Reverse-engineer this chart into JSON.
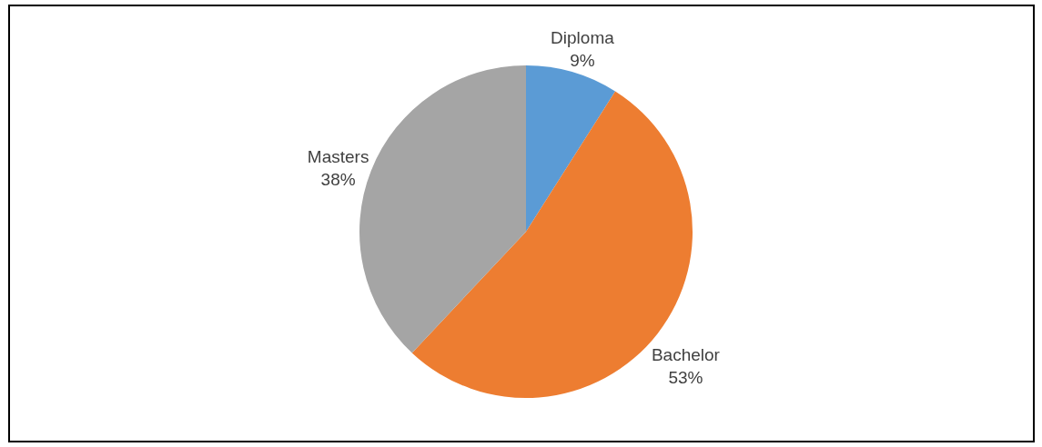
{
  "chart_data": {
    "type": "pie",
    "categories": [
      "Diploma",
      "Bachelor",
      "Masters"
    ],
    "values": [
      9,
      53,
      38
    ],
    "colors": [
      "#5b9bd5",
      "#ed7d31",
      "#a5a5a5"
    ],
    "value_labels": [
      "9%",
      "53%",
      "38%"
    ]
  }
}
